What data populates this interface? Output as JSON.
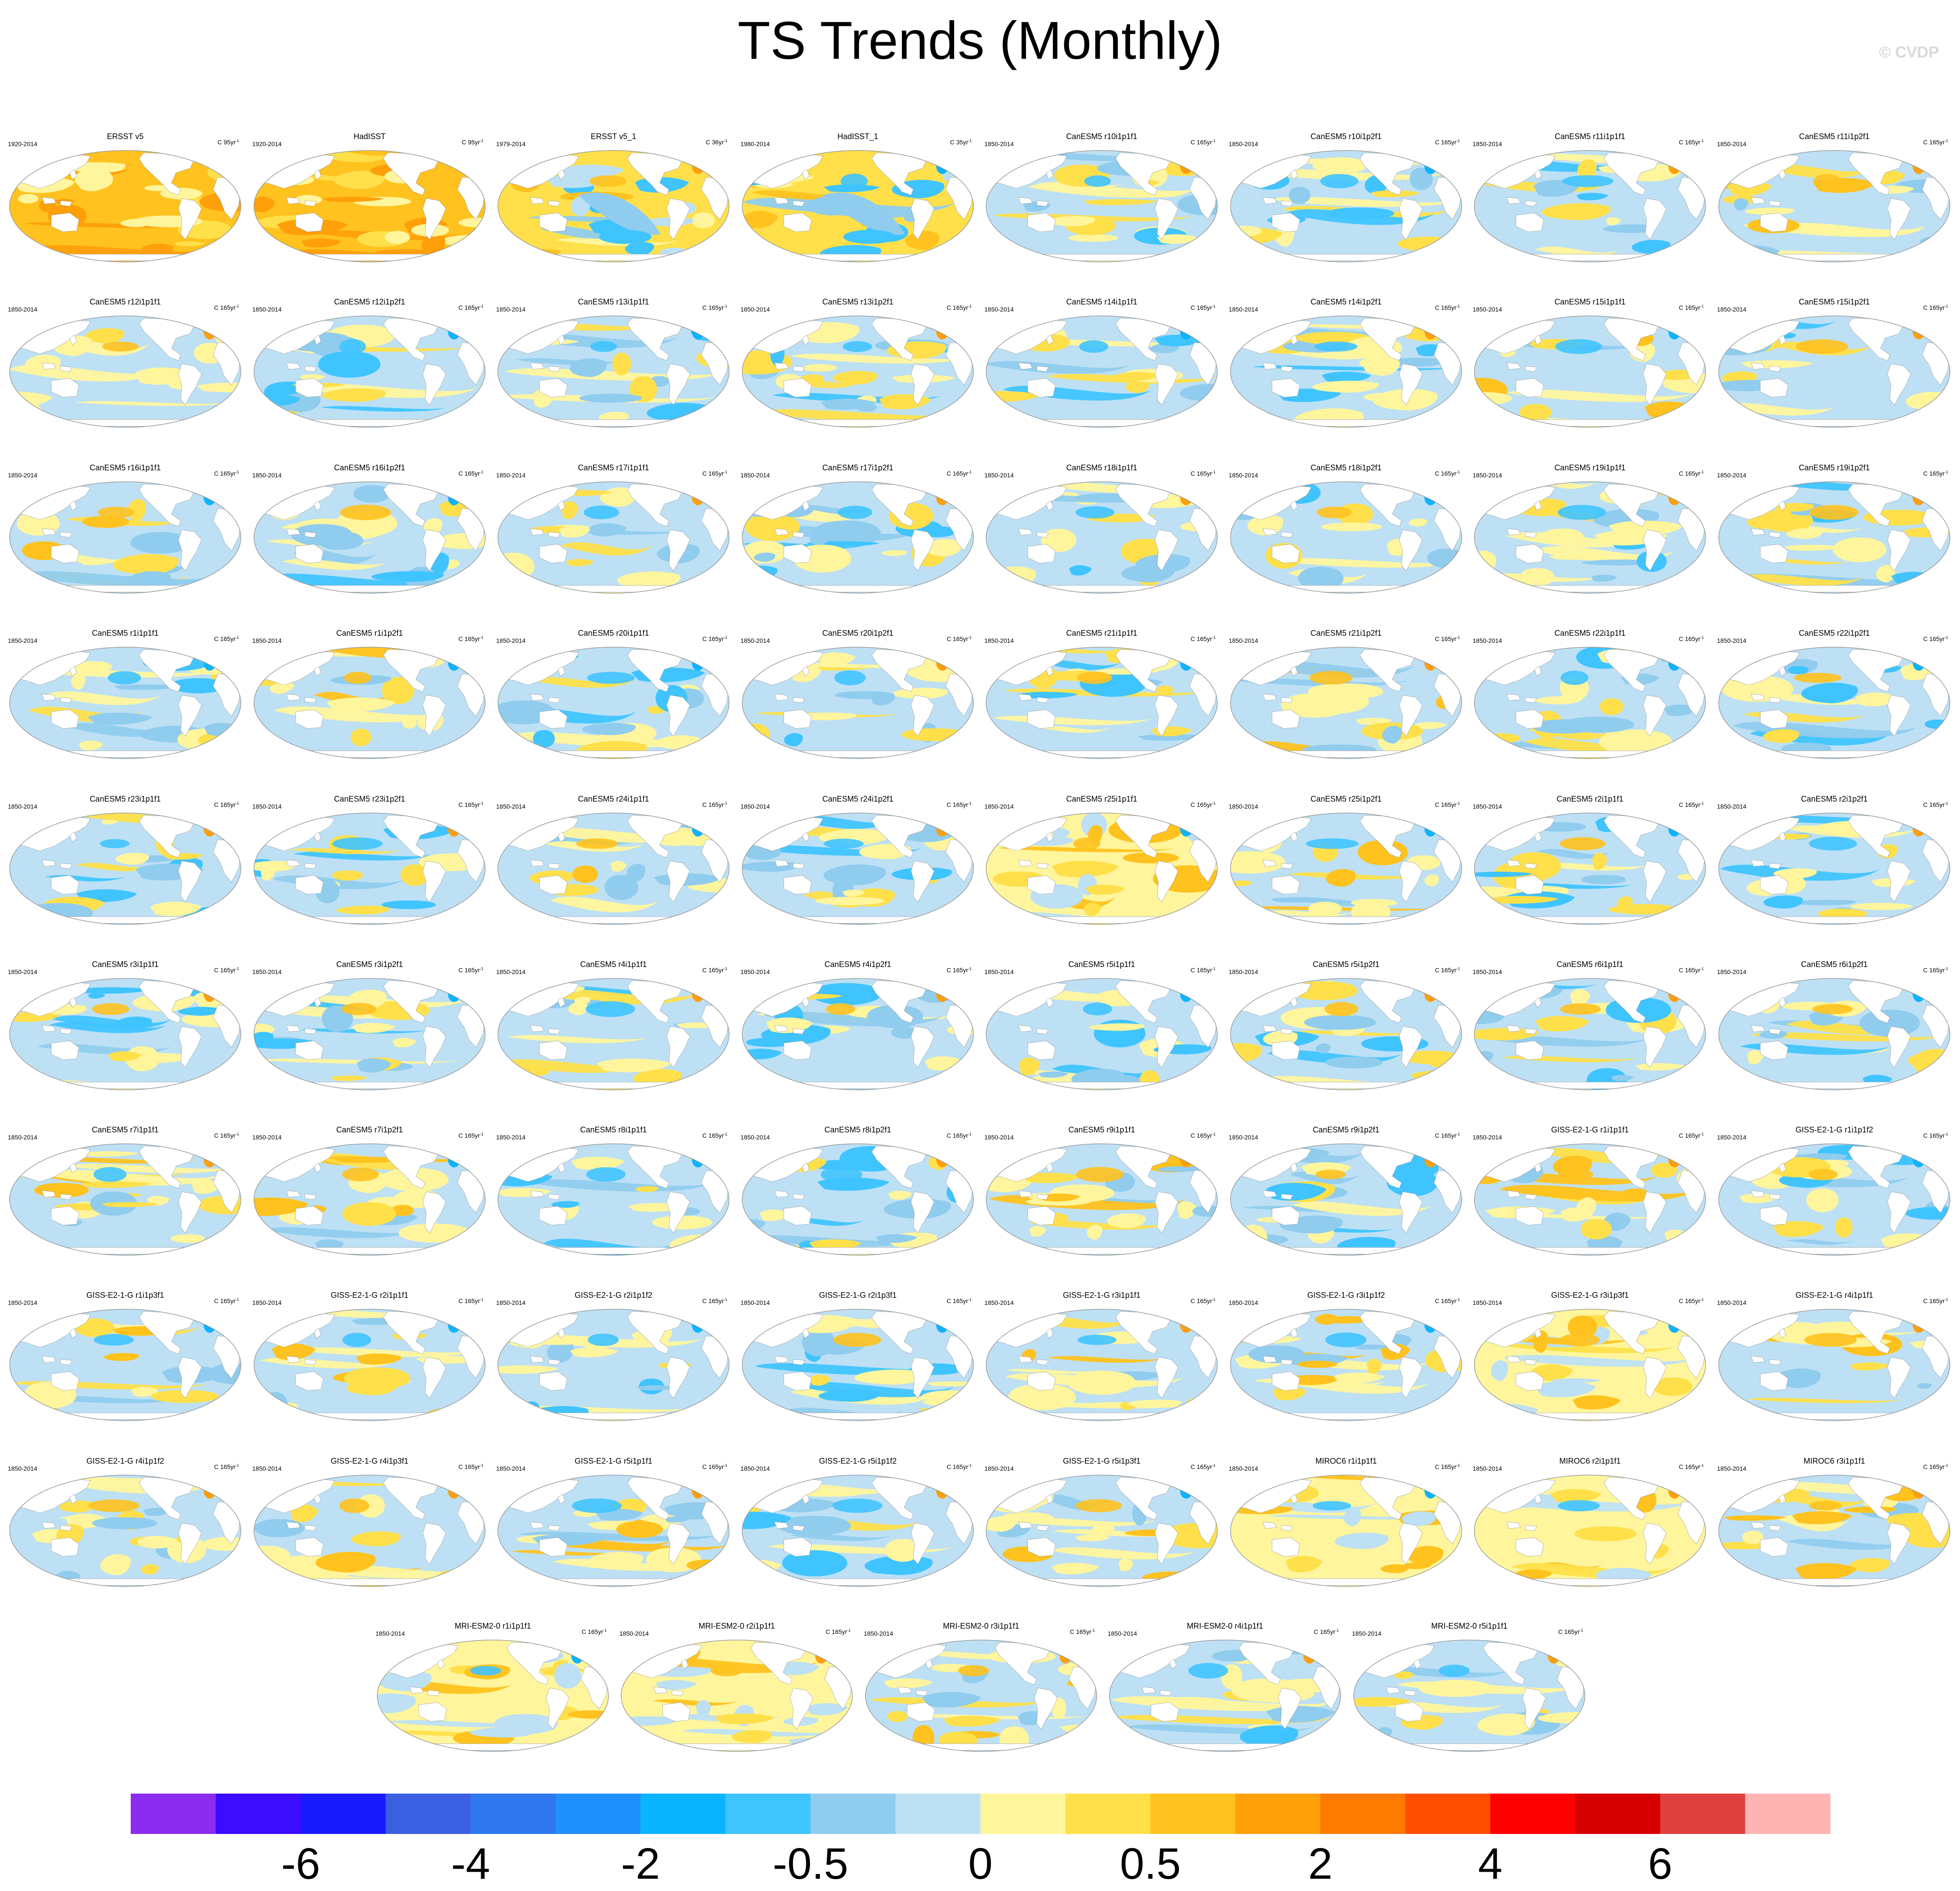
{
  "title": "TS Trends (Monthly)",
  "watermark": "© CVDP",
  "colors": {
    "land": "#ffffff",
    "coast": "#8a8a8a",
    "border": "#9a9a9a"
  },
  "chart_data": {
    "type": "map",
    "variable": "TS Trends (Monthly)",
    "colorbar": {
      "colors": [
        "#8b2cf0",
        "#3b0cff",
        "#1a1aff",
        "#3a5fe0",
        "#2f78ee",
        "#2190ff",
        "#0bb4ff",
        "#40c4ff",
        "#90ccee",
        "#bde0f5",
        "#fff59d",
        "#ffe04a",
        "#ffc21e",
        "#ff9f0a",
        "#ff7a00",
        "#ff4e00",
        "#ff0000",
        "#d60000",
        "#e04040",
        "#ffb4b4"
      ],
      "tick_labels": [
        "-6",
        "-4",
        "-2",
        "-0.5",
        "0",
        "0.5",
        "2",
        "4",
        "6"
      ]
    },
    "panels": [
      {
        "title": "ERSST v5",
        "period": "1920-2014",
        "units": "C 95yr",
        "base": "obs_strong"
      },
      {
        "title": "HadISST",
        "period": "1920-2014",
        "units": "C 95yr",
        "base": "obs_strong"
      },
      {
        "title": "ERSST v5_1",
        "period": "1979-2014",
        "units": "C 36yr",
        "base": "obs_mixed"
      },
      {
        "title": "HadISST_1",
        "period": "1980-2014",
        "units": "C 35yr",
        "base": "obs_mixed"
      },
      {
        "title": "CanESM5 r10i1p1f1",
        "period": "1850-2014",
        "units": "C 165yr",
        "base": "blue"
      },
      {
        "title": "CanESM5 r10i1p2f1",
        "period": "1850-2014",
        "units": "C 165yr",
        "base": "blue"
      },
      {
        "title": "CanESM5 r11i1p1f1",
        "period": "1850-2014",
        "units": "C 165yr",
        "base": "blue"
      },
      {
        "title": "CanESM5 r11i1p2f1",
        "period": "1850-2014",
        "units": "C 165yr",
        "base": "mix"
      },
      {
        "title": "CanESM5 r12i1p1f1",
        "period": "1850-2014",
        "units": "C 165yr",
        "base": "blue"
      },
      {
        "title": "CanESM5 r12i1p2f1",
        "period": "1850-2014",
        "units": "C 165yr",
        "base": "blue"
      },
      {
        "title": "CanESM5 r13i1p1f1",
        "period": "1850-2014",
        "units": "C 165yr",
        "base": "blue"
      },
      {
        "title": "CanESM5 r13i1p2f1",
        "period": "1850-2014",
        "units": "C 165yr",
        "base": "blue"
      },
      {
        "title": "CanESM5 r14i1p1f1",
        "period": "1850-2014",
        "units": "C 165yr",
        "base": "blue"
      },
      {
        "title": "CanESM5 r14i1p2f1",
        "period": "1850-2014",
        "units": "C 165yr",
        "base": "blue"
      },
      {
        "title": "CanESM5 r15i1p1f1",
        "period": "1850-2014",
        "units": "C 165yr",
        "base": "mix"
      },
      {
        "title": "CanESM5 r15i1p2f1",
        "period": "1850-2014",
        "units": "C 165yr",
        "base": "blue"
      },
      {
        "title": "CanESM5 r16i1p1f1",
        "period": "1850-2014",
        "units": "C 165yr",
        "base": "mix"
      },
      {
        "title": "CanESM5 r16i1p2f1",
        "period": "1850-2014",
        "units": "C 165yr",
        "base": "blue"
      },
      {
        "title": "CanESM5 r17i1p1f1",
        "period": "1850-2014",
        "units": "C 165yr",
        "base": "blue"
      },
      {
        "title": "CanESM5 r17i1p2f1",
        "period": "1850-2014",
        "units": "C 165yr",
        "base": "blue"
      },
      {
        "title": "CanESM5 r18i1p1f1",
        "period": "1850-2014",
        "units": "C 165yr",
        "base": "blue"
      },
      {
        "title": "CanESM5 r18i1p2f1",
        "period": "1850-2014",
        "units": "C 165yr",
        "base": "blue"
      },
      {
        "title": "CanESM5 r19i1p1f1",
        "period": "1850-2014",
        "units": "C 165yr",
        "base": "blue"
      },
      {
        "title": "CanESM5 r19i1p2f1",
        "period": "1850-2014",
        "units": "C 165yr",
        "base": "blue"
      },
      {
        "title": "CanESM5 r1i1p1f1",
        "period": "1850-2014",
        "units": "C 165yr",
        "base": "blue"
      },
      {
        "title": "CanESM5 r1i1p2f1",
        "period": "1850-2014",
        "units": "C 165yr",
        "base": "mix"
      },
      {
        "title": "CanESM5 r20i1p1f1",
        "period": "1850-2014",
        "units": "C 165yr",
        "base": "blue"
      },
      {
        "title": "CanESM5 r20i1p2f1",
        "period": "1850-2014",
        "units": "C 165yr",
        "base": "blue"
      },
      {
        "title": "CanESM5 r21i1p1f1",
        "period": "1850-2014",
        "units": "C 165yr",
        "base": "blue"
      },
      {
        "title": "CanESM5 r21i1p2f1",
        "period": "1850-2014",
        "units": "C 165yr",
        "base": "mix"
      },
      {
        "title": "CanESM5 r22i1p1f1",
        "period": "1850-2014",
        "units": "C 165yr",
        "base": "blue"
      },
      {
        "title": "CanESM5 r22i1p2f1",
        "period": "1850-2014",
        "units": "C 165yr",
        "base": "blue"
      },
      {
        "title": "CanESM5 r23i1p1f1",
        "period": "1850-2014",
        "units": "C 165yr",
        "base": "blue"
      },
      {
        "title": "CanESM5 r23i1p2f1",
        "period": "1850-2014",
        "units": "C 165yr",
        "base": "blue"
      },
      {
        "title": "CanESM5 r24i1p1f1",
        "period": "1850-2014",
        "units": "C 165yr",
        "base": "mix"
      },
      {
        "title": "CanESM5 r24i1p2f1",
        "period": "1850-2014",
        "units": "C 165yr",
        "base": "blue"
      },
      {
        "title": "CanESM5 r25i1p1f1",
        "period": "1850-2014",
        "units": "C 165yr",
        "base": "warm"
      },
      {
        "title": "CanESM5 r25i1p2f1",
        "period": "1850-2014",
        "units": "C 165yr",
        "base": "mix"
      },
      {
        "title": "CanESM5 r2i1p1f1",
        "period": "1850-2014",
        "units": "C 165yr",
        "base": "blue"
      },
      {
        "title": "CanESM5 r2i1p2f1",
        "period": "1850-2014",
        "units": "C 165yr",
        "base": "blue"
      },
      {
        "title": "CanESM5 r3i1p1f1",
        "period": "1850-2014",
        "units": "C 165yr",
        "base": "blue"
      },
      {
        "title": "CanESM5 r3i1p2f1",
        "period": "1850-2014",
        "units": "C 165yr",
        "base": "blue"
      },
      {
        "title": "CanESM5 r4i1p1f1",
        "period": "1850-2014",
        "units": "C 165yr",
        "base": "blue"
      },
      {
        "title": "CanESM5 r4i1p2f1",
        "period": "1850-2014",
        "units": "C 165yr",
        "base": "blue"
      },
      {
        "title": "CanESM5 r5i1p1f1",
        "period": "1850-2014",
        "units": "C 165yr",
        "base": "blue"
      },
      {
        "title": "CanESM5 r5i1p2f1",
        "period": "1850-2014",
        "units": "C 165yr",
        "base": "blue"
      },
      {
        "title": "CanESM5 r6i1p1f1",
        "period": "1850-2014",
        "units": "C 165yr",
        "base": "blue"
      },
      {
        "title": "CanESM5 r6i1p2f1",
        "period": "1850-2014",
        "units": "C 165yr",
        "base": "blue"
      },
      {
        "title": "CanESM5 r7i1p1f1",
        "period": "1850-2014",
        "units": "C 165yr",
        "base": "mix"
      },
      {
        "title": "CanESM5 r7i1p2f1",
        "period": "1850-2014",
        "units": "C 165yr",
        "base": "mix"
      },
      {
        "title": "CanESM5 r8i1p1f1",
        "period": "1850-2014",
        "units": "C 165yr",
        "base": "blue"
      },
      {
        "title": "CanESM5 r8i1p2f1",
        "period": "1850-2014",
        "units": "C 165yr",
        "base": "blue"
      },
      {
        "title": "CanESM5 r9i1p1f1",
        "period": "1850-2014",
        "units": "C 165yr",
        "base": "mix"
      },
      {
        "title": "CanESM5 r9i1p2f1",
        "period": "1850-2014",
        "units": "C 165yr",
        "base": "blue"
      },
      {
        "title": "GISS-E2-1-G r1i1p1f1",
        "period": "1850-2014",
        "units": "C 165yr",
        "base": "mix"
      },
      {
        "title": "GISS-E2-1-G r1i1p1f2",
        "period": "1850-2014",
        "units": "C 165yr",
        "base": "blue"
      },
      {
        "title": "GISS-E2-1-G r1i1p3f1",
        "period": "1850-2014",
        "units": "C 165yr",
        "base": "mix"
      },
      {
        "title": "GISS-E2-1-G r2i1p1f1",
        "period": "1850-2014",
        "units": "C 165yr",
        "base": "mix"
      },
      {
        "title": "GISS-E2-1-G r2i1p1f2",
        "period": "1850-2014",
        "units": "C 165yr",
        "base": "blue"
      },
      {
        "title": "GISS-E2-1-G r2i1p3f1",
        "period": "1850-2014",
        "units": "C 165yr",
        "base": "blue"
      },
      {
        "title": "GISS-E2-1-G r3i1p1f1",
        "period": "1850-2014",
        "units": "C 165yr",
        "base": "mix"
      },
      {
        "title": "GISS-E2-1-G r3i1p1f2",
        "period": "1850-2014",
        "units": "C 165yr",
        "base": "mix"
      },
      {
        "title": "GISS-E2-1-G r3i1p3f1",
        "period": "1850-2014",
        "units": "C 165yr",
        "base": "warm"
      },
      {
        "title": "GISS-E2-1-G r4i1p1f1",
        "period": "1850-2014",
        "units": "C 165yr",
        "base": "mix"
      },
      {
        "title": "GISS-E2-1-G r4i1p1f2",
        "period": "1850-2014",
        "units": "C 165yr",
        "base": "blue"
      },
      {
        "title": "GISS-E2-1-G r4i1p3f1",
        "period": "1850-2014",
        "units": "C 165yr",
        "base": "mix"
      },
      {
        "title": "GISS-E2-1-G r5i1p1f1",
        "period": "1850-2014",
        "units": "C 165yr",
        "base": "mix"
      },
      {
        "title": "GISS-E2-1-G r5i1p1f2",
        "period": "1850-2014",
        "units": "C 165yr",
        "base": "blue"
      },
      {
        "title": "GISS-E2-1-G r5i1p3f1",
        "period": "1850-2014",
        "units": "C 165yr",
        "base": "mix"
      },
      {
        "title": "MIROC6 r1i1p1f1",
        "period": "1850-2014",
        "units": "C 165yr",
        "base": "warm"
      },
      {
        "title": "MIROC6 r2i1p1f1",
        "period": "1850-2014",
        "units": "C 165yr",
        "base": "warm"
      },
      {
        "title": "MIROC6 r3i1p1f1",
        "period": "1850-2014",
        "units": "C 165yr",
        "base": "mix"
      },
      {
        "title": "MRI-ESM2-0 r1i1p1f1",
        "period": "1850-2014",
        "units": "C 165yr",
        "base": "warm"
      },
      {
        "title": "MRI-ESM2-0 r2i1p1f1",
        "period": "1850-2014",
        "units": "C 165yr",
        "base": "warm"
      },
      {
        "title": "MRI-ESM2-0 r3i1p1f1",
        "period": "1850-2014",
        "units": "C 165yr",
        "base": "mix"
      },
      {
        "title": "MRI-ESM2-0 r4i1p1f1",
        "period": "1850-2014",
        "units": "C 165yr",
        "base": "blue"
      },
      {
        "title": "MRI-ESM2-0 r5i1p1f1",
        "period": "1850-2014",
        "units": "C 165yr",
        "base": "mix"
      }
    ]
  }
}
